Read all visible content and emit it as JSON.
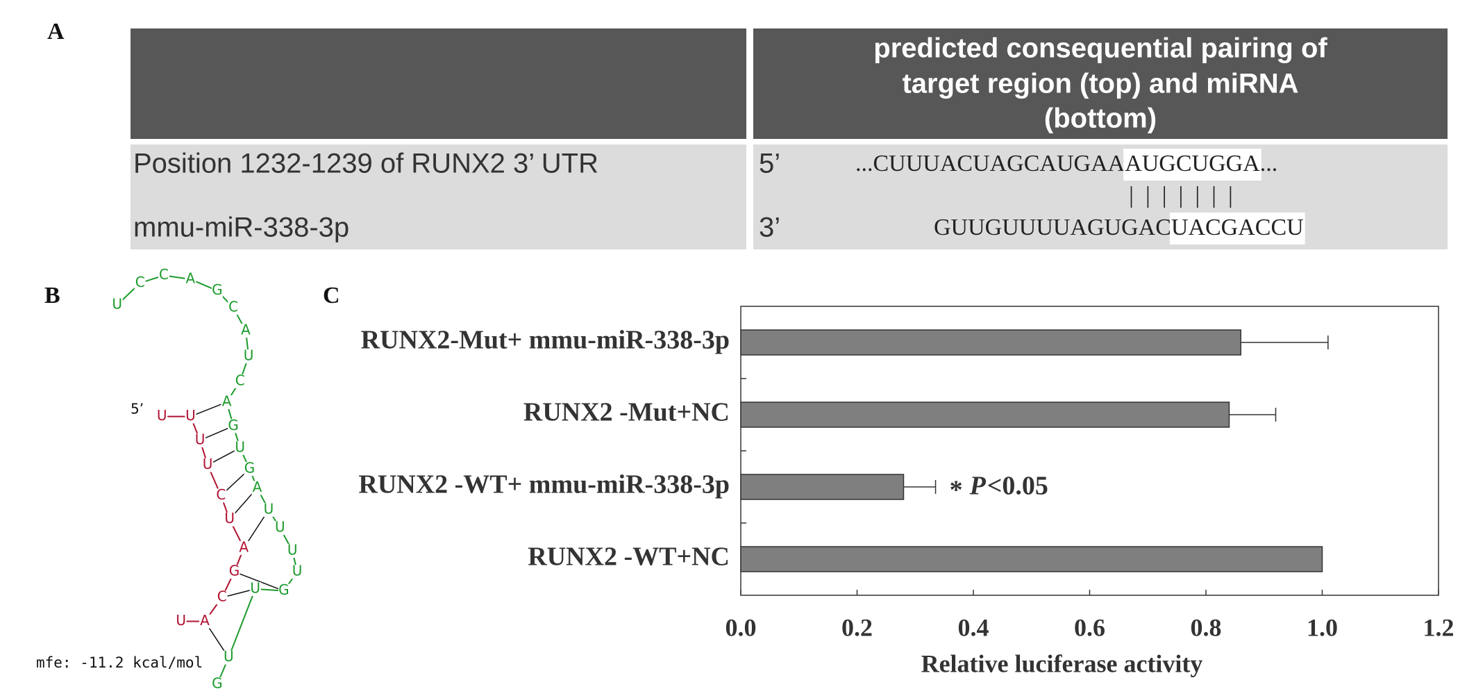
{
  "panels": [
    "A",
    "B",
    "C"
  ],
  "table": {
    "header_lines": [
      "predicted consequential pairing of",
      "target region (top) and miRNA",
      "(bottom)"
    ],
    "rows": [
      {
        "label": "Position 1232-1239 of RUNX2 3’ UTR",
        "end": "5’",
        "sequence": [
          "...CUUUACUAGCAUGAA",
          "AUGCUGGA",
          "..."
        ]
      },
      {
        "label": "mmu-miR-338-3p",
        "end": "3’",
        "sequence": [
          "GUUGUUUUAGUGAC",
          "UACGACCU"
        ]
      }
    ],
    "pairing": "|||||||"
  },
  "structure": {
    "target": "UUUUCUAGCAU",
    "mirna": "UCCAGCAUCAGUGAUUUUGUUG",
    "end_label": "5’",
    "mfe": "mfe: -11.2 kcal/mol"
  },
  "chart_data": {
    "type": "hbar",
    "categories": [
      "RUNX2-Mut+ mmu-miR-338-3p",
      "RUNX2 -Mut+NC",
      "RUNX2 -WT+ mmu-miR-338-3p",
      "RUNX2 -WT+NC"
    ],
    "values": [
      0.86,
      0.84,
      0.28,
      1.0
    ],
    "errors": [
      0.15,
      0.08,
      0.055,
      null
    ],
    "color": "#7f7f7f",
    "xlim": [
      0,
      1.2
    ],
    "xticks": [
      {
        "value": 0,
        "label": "0.0"
      },
      0.2,
      0.4,
      0.6,
      0.8,
      {
        "value": 1,
        "label": "1.0"
      },
      1.2
    ],
    "xlabel": "Relative luciferase activity",
    "annotation": {
      "star": "*",
      "p": "P",
      "threshold": "<0.05"
    }
  }
}
